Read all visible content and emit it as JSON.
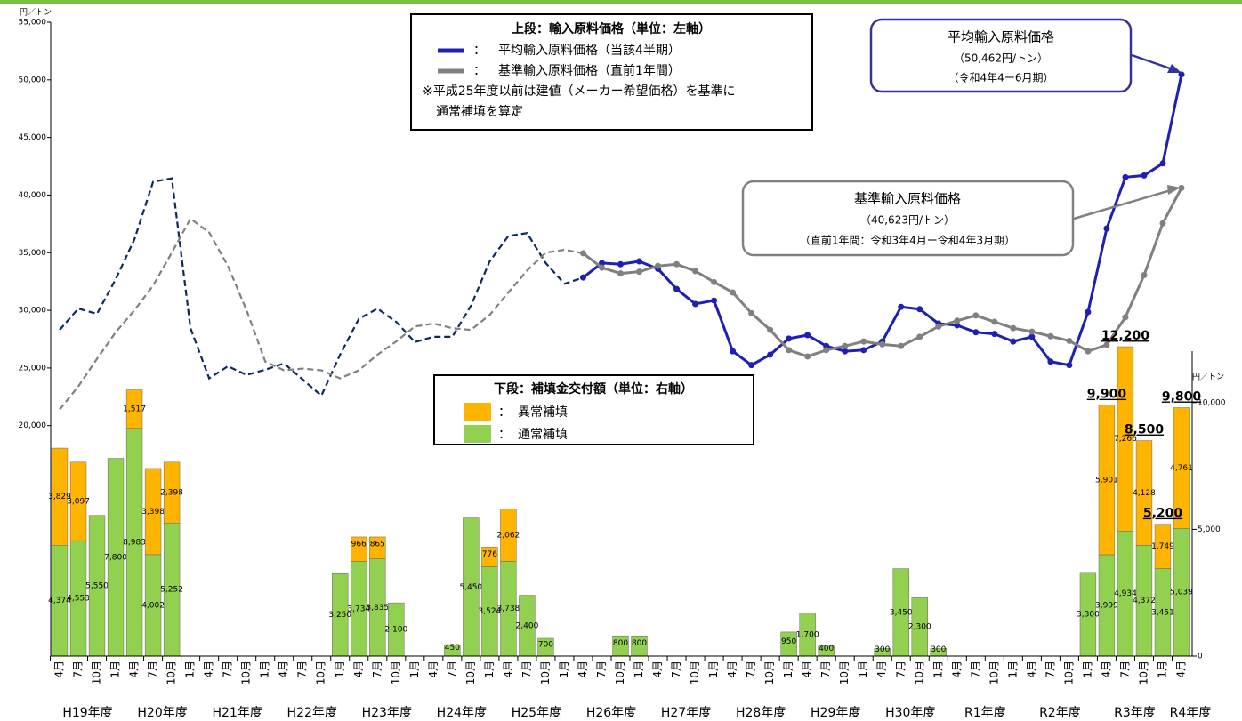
{
  "chart_data": {
    "type": "combo",
    "left_unit": "円／トン",
    "right_unit": "円／トン",
    "ylim": [
      0,
      55000
    ],
    "yticks": [
      {
        "value": 20000,
        "label": "20,000"
      },
      {
        "value": 25000,
        "label": "25,000"
      },
      {
        "value": 30000,
        "label": "30,000"
      },
      {
        "value": 35000,
        "label": "35,000"
      },
      {
        "value": 40000,
        "label": "40,000"
      },
      {
        "value": 45000,
        "label": "45,000"
      },
      {
        "value": 50000,
        "label": "50,000"
      },
      {
        "value": 55000,
        "label": "55,000"
      }
    ],
    "y2lim": [
      0,
      25000
    ],
    "y2ticks": [
      0,
      {
        "value": 5000,
        "label": "5,000"
      },
      {
        "value": 10000,
        "label": "10,000"
      }
    ],
    "categories": [
      "4月",
      "7月",
      "10月",
      "1月",
      "4月",
      "7月",
      "10月",
      "1月",
      "4月",
      "7月",
      "10月",
      "1月",
      "4月",
      "7月",
      "10月",
      "1月",
      "4月",
      "7月",
      "10月",
      "1月",
      "4月",
      "7月",
      "10月",
      "1月",
      "4月",
      "7月",
      "10月",
      "1月",
      "4月",
      "7月",
      "10月",
      "1月",
      "4月",
      "7月",
      "10月",
      "1月",
      "4月",
      "7月",
      "10月",
      "1月",
      "4月",
      "7月",
      "10月",
      "1月",
      "4月",
      "7月",
      "10月",
      "1月",
      "4月",
      "7月",
      "10月",
      "1月",
      "4月",
      "7月",
      "10月",
      "1月",
      "4月",
      "7月",
      "10月",
      "1月",
      "4月"
    ],
    "year_groups": [
      "H19年度",
      "H20年度",
      "H21年度",
      "H22年度",
      "H23年度",
      "H24年度",
      "H25年度",
      "H26年度",
      "H27年度",
      "H28年度",
      "H29年度",
      "H30年度",
      "R1年度",
      "R2年度",
      "R3年度",
      "R4年度"
    ],
    "dashed_until": 28,
    "legend_top": {
      "title": "上段：輸入原料価格（単位：左軸）",
      "separator": "：",
      "note1": "※平成25年度以前は建値（メーカー希望価格）を基準に",
      "note2": "通常補填を算定"
    },
    "legend_bottom": {
      "title": "下段：補填金交付額（単位：右軸）",
      "separator": "："
    },
    "callout_avg": [
      "平均輸入原料価格",
      "（50,462円/トン）",
      "（令和4年4ー6月期）"
    ],
    "callout_std": [
      "基準輸入原料価格",
      "（40,623円/トン）",
      "（直前1年間：令和3年4月ー令和4年3月期）"
    ],
    "series": [
      {
        "name": "平均輸入原料価格（当該4半期）",
        "color": "#1f1fb4",
        "dash_color": "#0d2a5c",
        "values": [
          28300,
          30150,
          29700,
          32700,
          36150,
          41150,
          41450,
          28450,
          24100,
          25150,
          24400,
          24850,
          25400,
          24000,
          22600,
          26150,
          29250,
          30150,
          29000,
          27250,
          27700,
          27700,
          30400,
          34250,
          36450,
          36700,
          34100,
          32300,
          32850,
          34100,
          34000,
          34250,
          33600,
          31850,
          30550,
          30850,
          26450,
          25250,
          26150,
          27550,
          27850,
          26900,
          26450,
          26550,
          27300,
          30300,
          30100,
          28850,
          28700,
          28100,
          27950,
          27300,
          27700,
          25550,
          25250,
          29850,
          37100,
          41550,
          41700,
          42750,
          50462
        ]
      },
      {
        "name": "基準輸入原料価格（直前1年間）",
        "color": "#808080",
        "dash_color": "#808080",
        "values": [
          21400,
          23400,
          25800,
          28100,
          30000,
          32150,
          35000,
          37950,
          36750,
          33850,
          30000,
          25550,
          24800,
          24950,
          24800,
          24100,
          24800,
          26150,
          27300,
          28600,
          28850,
          28450,
          28300,
          29600,
          31550,
          33450,
          35000,
          35250,
          34950,
          33700,
          33200,
          33350,
          33850,
          34000,
          33400,
          32450,
          31550,
          29750,
          28300,
          26550,
          26000,
          26550,
          26900,
          27300,
          27050,
          26900,
          27700,
          28600,
          29100,
          29550,
          29000,
          28450,
          28150,
          27750,
          27350,
          26450,
          27000,
          29400,
          33050,
          37550,
          40623
        ]
      },
      {
        "name": "異常補填",
        "color": "#ffb400",
        "axis": "y2",
        "values": [
          3829,
          3097,
          null,
          null,
          1517,
          3398,
          2398,
          null,
          null,
          null,
          null,
          null,
          null,
          null,
          null,
          null,
          966,
          865,
          null,
          null,
          null,
          null,
          null,
          776,
          2062,
          null,
          null,
          null,
          null,
          null,
          null,
          null,
          null,
          null,
          null,
          null,
          null,
          null,
          null,
          null,
          null,
          null,
          null,
          null,
          null,
          null,
          null,
          null,
          null,
          null,
          null,
          null,
          null,
          null,
          null,
          null,
          5901,
          7266,
          4128,
          1749,
          4761
        ],
        "value_labels": [
          "3,829",
          "3,097",
          null,
          null,
          "1,517",
          "3,398",
          "2,398",
          null,
          null,
          null,
          null,
          null,
          null,
          null,
          null,
          null,
          "966",
          "865",
          null,
          null,
          null,
          null,
          null,
          "776",
          "2,062",
          null,
          null,
          null,
          null,
          null,
          null,
          null,
          null,
          null,
          null,
          null,
          null,
          null,
          null,
          null,
          null,
          null,
          null,
          null,
          null,
          null,
          null,
          null,
          null,
          null,
          null,
          null,
          null,
          null,
          null,
          null,
          "5,901",
          "7,266",
          "4,128",
          "1,749",
          "4,761"
        ]
      },
      {
        "name": "通常補填",
        "color": "#92d050",
        "axis": "y2",
        "values": [
          4374,
          4553,
          5550,
          7800,
          8983,
          4002,
          5252,
          null,
          null,
          null,
          null,
          null,
          null,
          null,
          null,
          3250,
          3734,
          3835,
          2100,
          null,
          null,
          450,
          5450,
          3524,
          3738,
          2400,
          700,
          null,
          null,
          null,
          800,
          800,
          null,
          null,
          null,
          null,
          null,
          null,
          null,
          950,
          1700,
          400,
          null,
          null,
          300,
          3450,
          2300,
          300,
          null,
          null,
          null,
          null,
          null,
          null,
          null,
          3300,
          3999,
          4934,
          4372,
          3451,
          5039
        ],
        "value_labels": [
          "4,374",
          "4,553",
          "5,550",
          "7,800",
          "8,983",
          "4,002",
          "5,252",
          null,
          null,
          null,
          null,
          null,
          null,
          null,
          null,
          "3,250",
          "3,734",
          "3,835",
          "2,100",
          null,
          null,
          "450",
          "5,450",
          "3,524",
          "3,738",
          "2,400",
          "700",
          null,
          null,
          null,
          "800",
          "800",
          null,
          null,
          null,
          null,
          null,
          null,
          null,
          "950",
          "1,700",
          "400",
          null,
          null,
          "300",
          "3,450",
          "2,300",
          "300",
          null,
          null,
          null,
          null,
          null,
          null,
          null,
          "3,300",
          "3,999",
          "4,934",
          "4,372",
          "3,451",
          "5,039"
        ]
      }
    ],
    "totals": [
      null,
      null,
      null,
      null,
      null,
      null,
      null,
      null,
      null,
      null,
      null,
      null,
      null,
      null,
      null,
      null,
      null,
      null,
      null,
      null,
      null,
      null,
      null,
      null,
      null,
      null,
      null,
      null,
      null,
      null,
      null,
      null,
      null,
      null,
      null,
      null,
      null,
      null,
      null,
      null,
      null,
      null,
      null,
      null,
      null,
      null,
      null,
      null,
      null,
      null,
      null,
      null,
      null,
      null,
      null,
      null,
      9900,
      12200,
      8500,
      5200,
      9800
    ],
    "totals_labels": [
      null,
      null,
      null,
      null,
      null,
      null,
      null,
      null,
      null,
      null,
      null,
      null,
      null,
      null,
      null,
      null,
      null,
      null,
      null,
      null,
      null,
      null,
      null,
      null,
      null,
      null,
      null,
      null,
      null,
      null,
      null,
      null,
      null,
      null,
      null,
      null,
      null,
      null,
      null,
      null,
      null,
      null,
      null,
      null,
      null,
      null,
      null,
      null,
      null,
      null,
      null,
      null,
      null,
      null,
      null,
      null,
      "9,900",
      "12,200",
      "8,500",
      "5,200",
      "9,800"
    ]
  }
}
